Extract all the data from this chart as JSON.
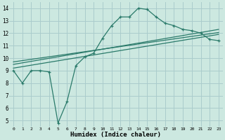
{
  "xlabel": "Humidex (Indice chaleur)",
  "bg_color": "#cce8e0",
  "grid_color": "#aacccc",
  "line_color": "#2a7a6a",
  "xlim": [
    -0.5,
    23.5
  ],
  "ylim": [
    4.5,
    14.5
  ],
  "xticks": [
    0,
    1,
    2,
    3,
    4,
    5,
    6,
    7,
    8,
    9,
    10,
    11,
    12,
    13,
    14,
    15,
    16,
    17,
    18,
    19,
    20,
    21,
    22,
    23
  ],
  "yticks": [
    5,
    6,
    7,
    8,
    9,
    10,
    11,
    12,
    13,
    14
  ],
  "line1_x": [
    0,
    1,
    2,
    3,
    4,
    5,
    6,
    7,
    8,
    9,
    10,
    11,
    12,
    13,
    14,
    15,
    16,
    17,
    18,
    19,
    20,
    21,
    22,
    23
  ],
  "line1_y": [
    9.0,
    8.0,
    9.0,
    9.0,
    8.9,
    4.8,
    6.5,
    9.4,
    10.1,
    10.4,
    11.6,
    12.6,
    13.3,
    13.3,
    14.0,
    13.9,
    13.3,
    12.8,
    12.6,
    12.3,
    12.2,
    12.0,
    11.5,
    11.4
  ],
  "line2_x": [
    0,
    23
  ],
  "line2_y": [
    9.2,
    11.9
  ],
  "line3_x": [
    0,
    23
  ],
  "line3_y": [
    9.5,
    12.3
  ],
  "line4_x": [
    0,
    23
  ],
  "line4_y": [
    9.7,
    12.05
  ]
}
